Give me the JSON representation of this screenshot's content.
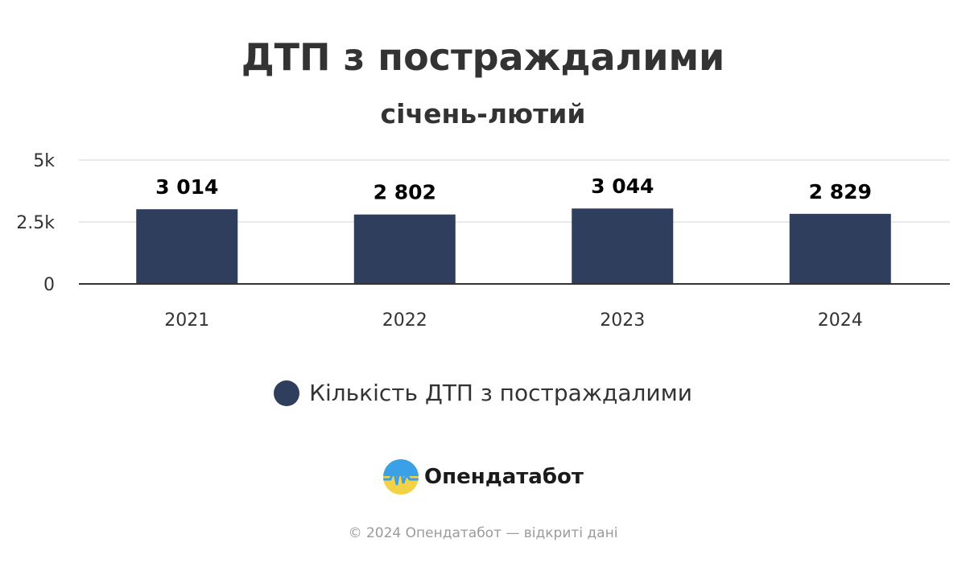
{
  "chart_data": {
    "type": "bar",
    "title": "ДТП з постраждалими",
    "subtitle": "січень-лютий",
    "categories": [
      "2021",
      "2022",
      "2023",
      "2024"
    ],
    "series": [
      {
        "name": "Кількість ДТП з постраждалими",
        "values": [
          3014,
          2802,
          3044,
          2829
        ],
        "value_labels": [
          "3 014",
          "2 802",
          "3 044",
          "2 829"
        ],
        "color": "#2e3e5c"
      }
    ],
    "ylim": [
      0,
      5000
    ],
    "yticks": [
      0,
      2500,
      5000
    ],
    "ytick_labels": [
      "0",
      "2.5k",
      "5k"
    ],
    "grid": true,
    "legend_position": "bottom-center"
  },
  "brand": {
    "name": "Опендатабот",
    "logo_icon": "opendatabot-logo-icon"
  },
  "footer": {
    "text": "© 2024 Опендатабот — відкриті дані"
  }
}
